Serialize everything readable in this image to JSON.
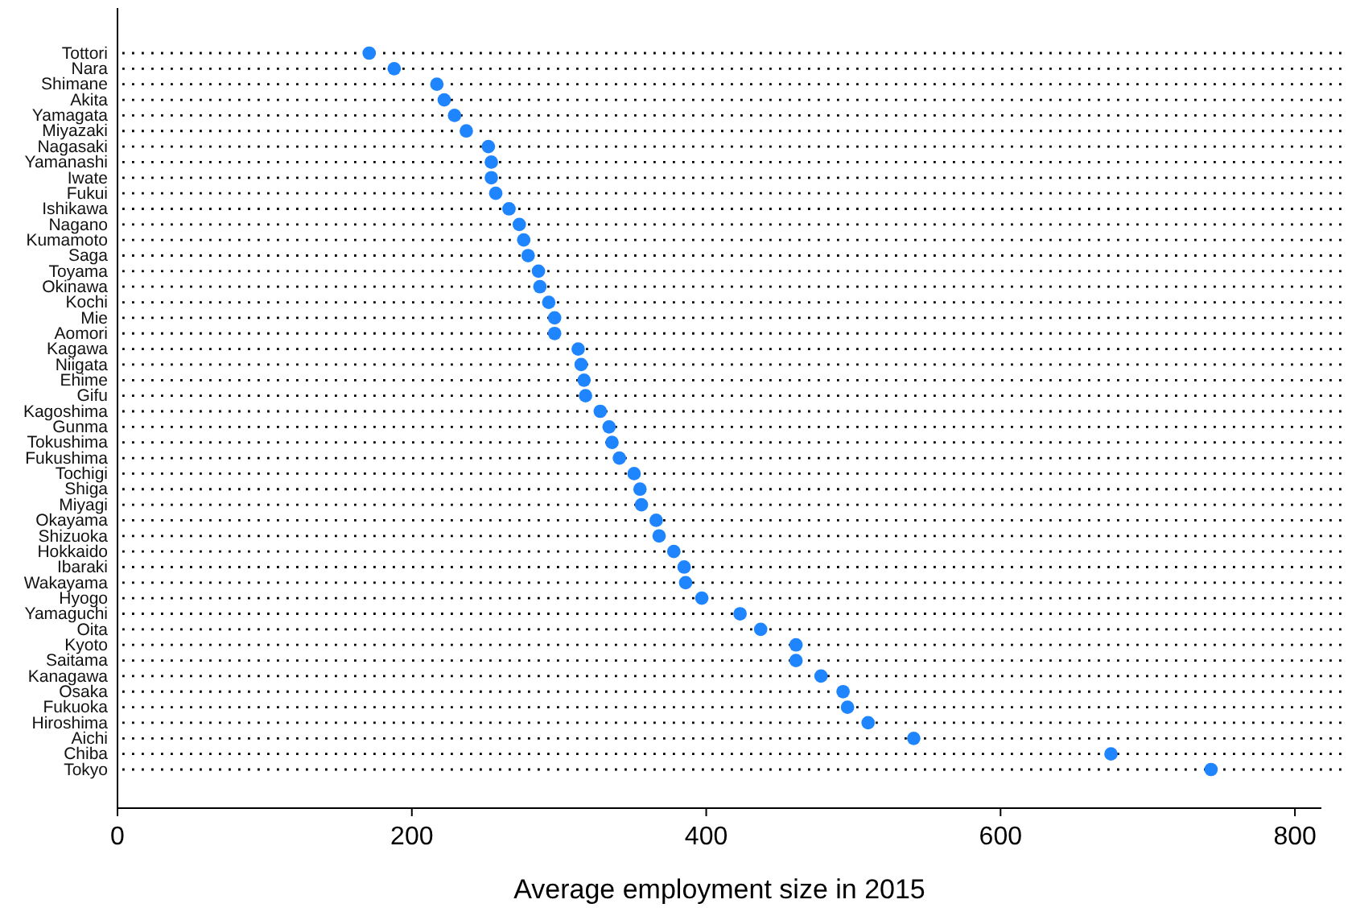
{
  "chart_data": {
    "type": "scatter",
    "orientation": "horizontal",
    "xlabel": "Average employment size in 2015",
    "categories": [
      "Tottori",
      "Nara",
      "Shimane",
      "Akita",
      "Yamagata",
      "Miyazaki",
      "Nagasaki",
      "Yamanashi",
      "Iwate",
      "Fukui",
      "Ishikawa",
      "Nagano",
      "Kumamoto",
      "Saga",
      "Toyama",
      "Okinawa",
      "Kochi",
      "Mie",
      "Aomori",
      "Kagawa",
      "Niigata",
      "Ehime",
      "Gifu",
      "Kagoshima",
      "Gunma",
      "Tokushima",
      "Fukushima",
      "Tochigi",
      "Shiga",
      "Miyagi",
      "Okayama",
      "Shizuoka",
      "Hokkaido",
      "Ibaraki",
      "Wakayama",
      "Hyogo",
      "Yamaguchi",
      "Oita",
      "Kyoto",
      "Saitama",
      "Kanagawa",
      "Osaka",
      "Fukuoka",
      "Hiroshima",
      "Aichi",
      "Chiba",
      "Tokyo"
    ],
    "values": [
      171,
      188,
      217,
      222,
      229,
      237,
      252,
      254,
      254,
      257,
      266,
      273,
      276,
      279,
      286,
      287,
      293,
      297,
      297,
      313,
      315,
      317,
      318,
      328,
      334,
      336,
      341,
      351,
      355,
      356,
      366,
      368,
      378,
      385,
      386,
      397,
      423,
      437,
      461,
      461,
      478,
      493,
      496,
      510,
      541,
      675,
      743
    ],
    "color": "#1f85ff",
    "marker": "circle",
    "grid": "y",
    "xlim": [
      0,
      818
    ],
    "xticks": [
      0,
      200,
      400,
      600,
      800
    ]
  }
}
